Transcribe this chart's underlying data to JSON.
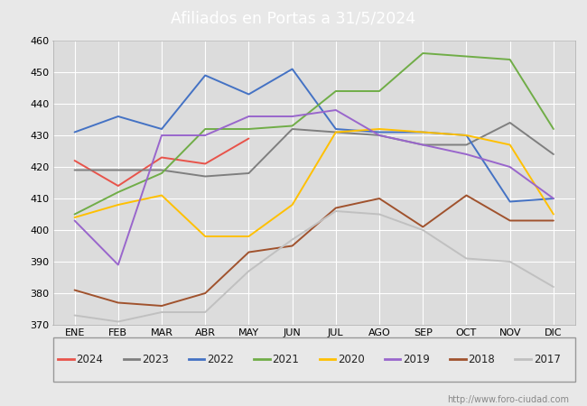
{
  "title": "Afiliados en Portas a 31/5/2024",
  "header_color": "#5b9bd5",
  "ylim": [
    370,
    460
  ],
  "yticks": [
    370,
    380,
    390,
    400,
    410,
    420,
    430,
    440,
    450,
    460
  ],
  "months": [
    "ENE",
    "FEB",
    "MAR",
    "ABR",
    "MAY",
    "JUN",
    "JUL",
    "AGO",
    "SEP",
    "OCT",
    "NOV",
    "DIC"
  ],
  "series": {
    "2024": {
      "color": "#e8534a",
      "data": [
        422,
        414,
        423,
        421,
        429,
        null,
        null,
        null,
        null,
        null,
        null,
        null
      ]
    },
    "2023": {
      "color": "#7f7f7f",
      "data": [
        419,
        419,
        419,
        417,
        418,
        432,
        431,
        430,
        427,
        427,
        434,
        424
      ]
    },
    "2022": {
      "color": "#4472c4",
      "data": [
        431,
        436,
        432,
        449,
        443,
        451,
        432,
        431,
        431,
        430,
        409,
        410
      ]
    },
    "2021": {
      "color": "#70ad47",
      "data": [
        405,
        412,
        418,
        432,
        432,
        433,
        444,
        444,
        456,
        455,
        454,
        432
      ]
    },
    "2020": {
      "color": "#ffc000",
      "data": [
        404,
        408,
        411,
        398,
        398,
        408,
        431,
        432,
        431,
        430,
        427,
        405
      ]
    },
    "2019": {
      "color": "#9966cc",
      "data": [
        403,
        389,
        430,
        430,
        436,
        436,
        438,
        430,
        427,
        424,
        420,
        410
      ]
    },
    "2018": {
      "color": "#a0522d",
      "data": [
        381,
        377,
        376,
        380,
        393,
        395,
        407,
        410,
        401,
        411,
        403,
        403
      ]
    },
    "2017": {
      "color": "#c0c0c0",
      "data": [
        373,
        371,
        374,
        374,
        387,
        397,
        406,
        405,
        400,
        391,
        390,
        382
      ]
    }
  },
  "legend_order": [
    "2024",
    "2023",
    "2022",
    "2021",
    "2020",
    "2019",
    "2018",
    "2017"
  ],
  "watermark": "http://www.foro-ciudad.com",
  "bg_color": "#e8e8e8",
  "plot_bg_color": "#dcdcdc",
  "grid_color": "#ffffff"
}
